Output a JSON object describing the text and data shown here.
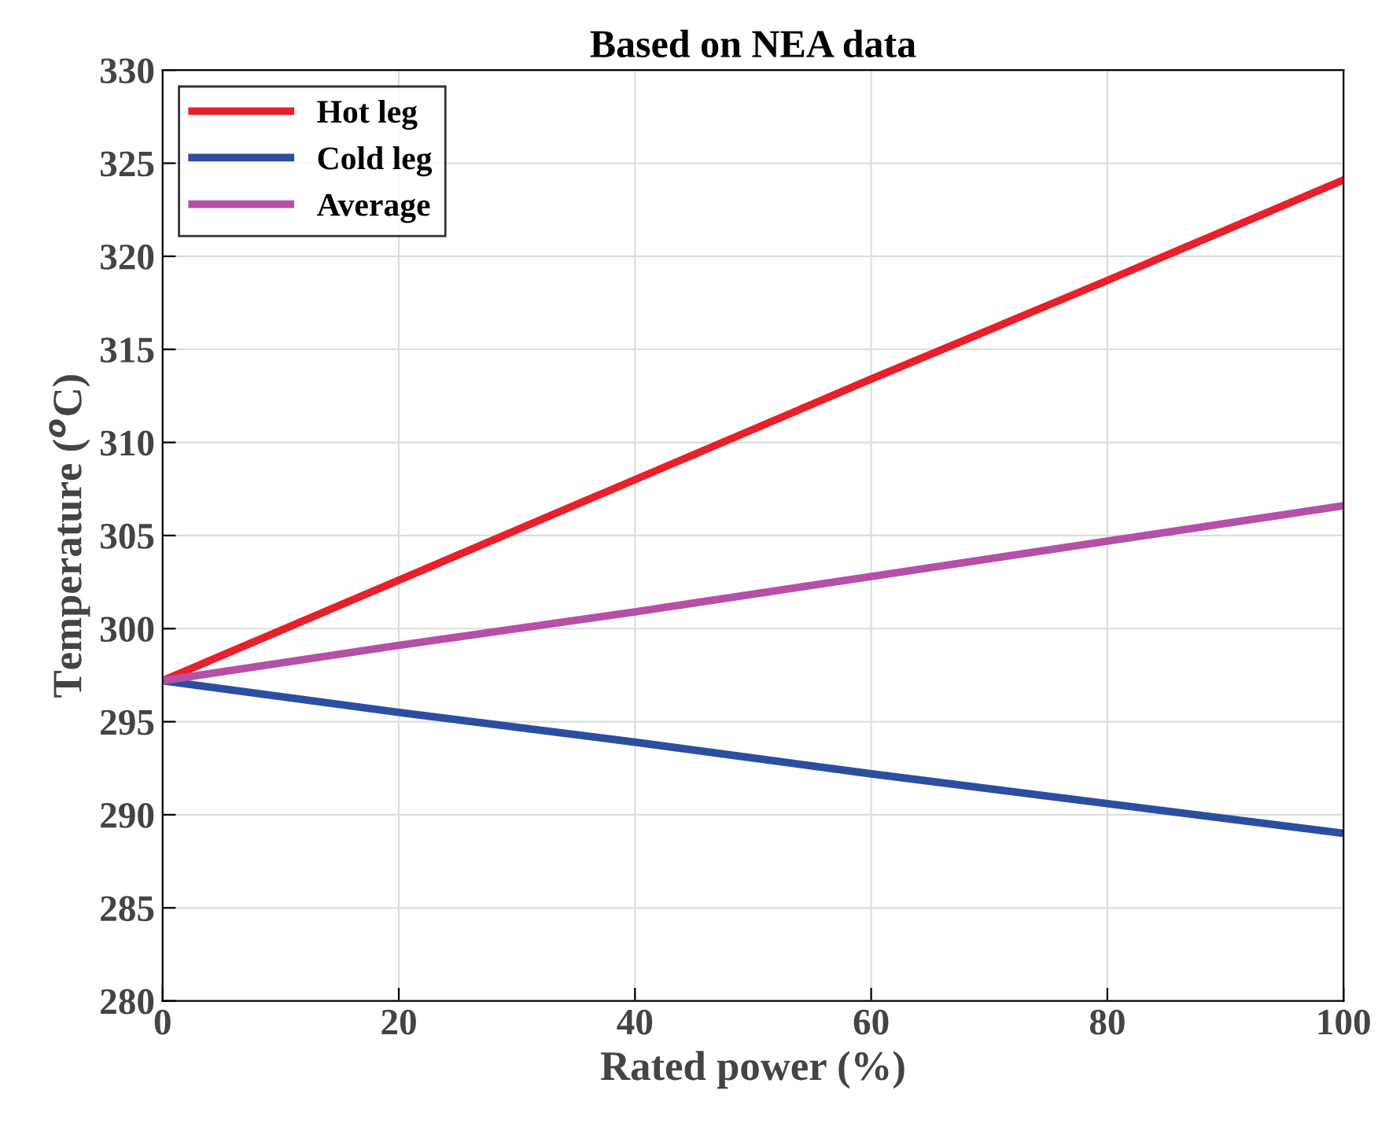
{
  "chart_data": {
    "type": "line",
    "title": "Based on NEA data",
    "xlabel": "Rated power (%)",
    "ylabel": "Temperature ($^{o}$C)",
    "x": [
      0,
      20,
      40,
      60,
      80,
      100
    ],
    "series": [
      {
        "name": "Hot leg",
        "color": "#e8202a",
        "values": [
          297.2,
          302.6,
          308.0,
          313.4,
          318.7,
          324.1
        ]
      },
      {
        "name": "Cold leg",
        "color": "#2b4ea2",
        "values": [
          297.2,
          295.5,
          293.9,
          292.2,
          290.6,
          289.0
        ]
      },
      {
        "name": "Average",
        "color": "#b64fa6",
        "values": [
          297.2,
          299.1,
          300.9,
          302.8,
          304.7,
          306.6
        ]
      }
    ],
    "xlim": [
      0,
      100
    ],
    "xticks": [
      0,
      20,
      40,
      60,
      80,
      100
    ],
    "ylim": [
      280,
      330
    ],
    "yticks": [
      280,
      285,
      290,
      295,
      300,
      305,
      310,
      315,
      320,
      325,
      330
    ],
    "grid": true,
    "legend": "top left",
    "marker": "none",
    "line_style": "solid"
  }
}
